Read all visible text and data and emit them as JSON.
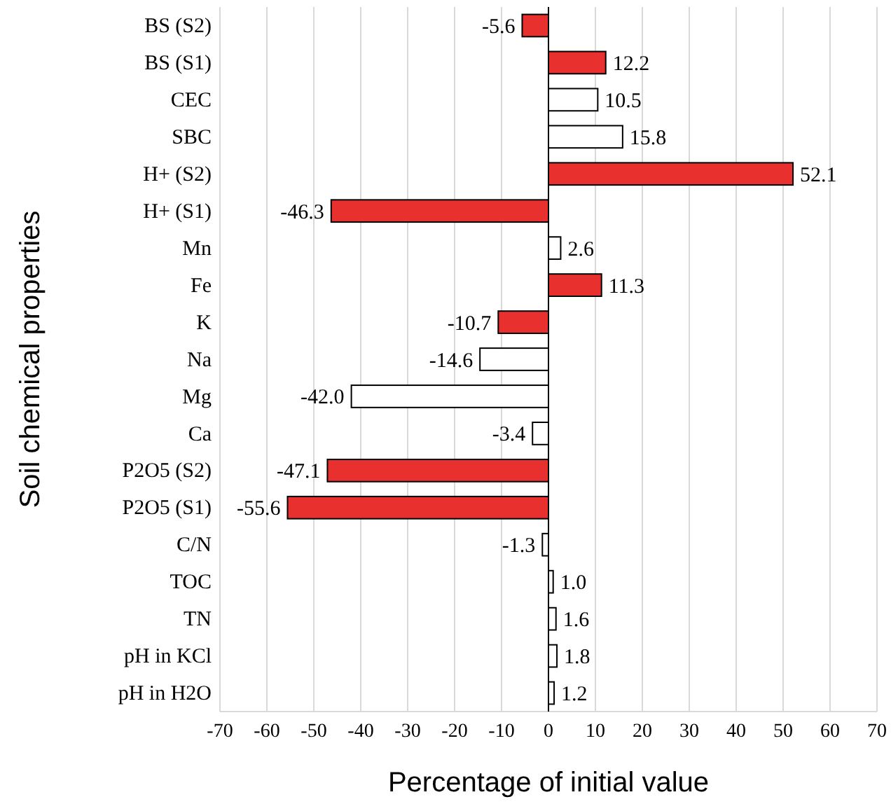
{
  "chart_data": {
    "type": "bar",
    "orientation": "horizontal",
    "xlabel": "Percentage of initial value",
    "ylabel": "Soil chemical properties",
    "categories": [
      "BS (S2)",
      "BS (S1)",
      "CEC",
      "SBC",
      "H+ (S2)",
      "H+ (S1)",
      "Mn",
      "Fe",
      "K",
      "Na",
      "Mg",
      "Ca",
      "P2O5 (S2)",
      "P2O5 (S1)",
      "C/N",
      "TOC",
      "TN",
      "pH in KCl",
      "pH in H2O"
    ],
    "values": [
      -5.6,
      12.2,
      10.5,
      15.8,
      52.1,
      -46.3,
      2.6,
      11.3,
      -10.7,
      -14.6,
      -42.0,
      -3.4,
      -47.1,
      -55.6,
      -1.3,
      1.0,
      1.6,
      1.8,
      1.2
    ],
    "value_labels": [
      "-5.6",
      "12.2",
      "10.5",
      "15.8",
      "52.1",
      "-46.3",
      "2.6",
      "11.3",
      "-10.7",
      "-14.6",
      "-42.0",
      "-3.4",
      "-47.1",
      "-55.6",
      "-1.3",
      "1.0",
      "1.6",
      "1.8",
      "1.2"
    ],
    "colors": [
      "#e8302f",
      "#e8302f",
      "#ffffff",
      "#ffffff",
      "#e8302f",
      "#e8302f",
      "#ffffff",
      "#e8302f",
      "#e8302f",
      "#ffffff",
      "#ffffff",
      "#ffffff",
      "#e8302f",
      "#e8302f",
      "#ffffff",
      "#ffffff",
      "#ffffff",
      "#ffffff",
      "#ffffff"
    ],
    "xlim": [
      -70,
      70
    ],
    "xticks": [
      -70,
      -60,
      -50,
      -40,
      -30,
      -20,
      -10,
      0,
      10,
      20,
      30,
      40,
      50,
      60,
      70
    ],
    "grid": "x"
  }
}
